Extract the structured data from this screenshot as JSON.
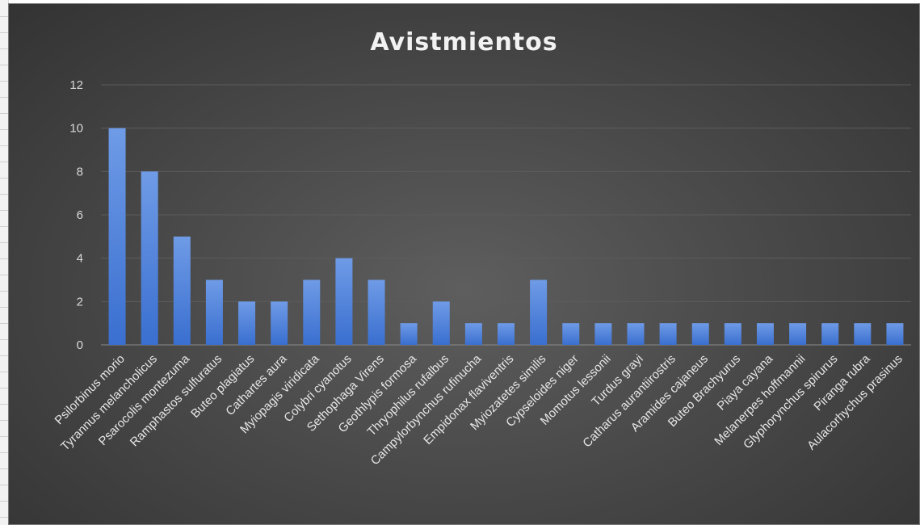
{
  "chart_data": {
    "type": "bar",
    "title": "Avistmientos",
    "xlabel": "",
    "ylabel": "",
    "ylim": [
      0,
      12
    ],
    "yticks": [
      0,
      2,
      4,
      6,
      8,
      10,
      12
    ],
    "grid": true,
    "legend": "none",
    "categories": [
      "Psilorbinus morio",
      "Tyrannus melancholicus",
      "Psarocolis montezuma",
      "Ramphastos sulfuratus",
      "Buteo plagiatus",
      "Cathartes aura",
      "Myiopagis viridicata",
      "Colybri cyanotus",
      "Sethophaga Virens",
      "Geothlypis formosa",
      "Thryophilus rufalbus",
      "Campylorbynchus rufinucha",
      "Empidonax flaviventris",
      "Myiozatetes similis",
      "Cypseloides niger",
      "Momotus lessonii",
      "Turdus grayi",
      "Catharus aurantiirostris",
      "Aramides cajaneus",
      "Buteo Brachyurus",
      "Piaya cayana",
      "Melanerpes hoffmannii",
      "Glyphorynchus spirurus",
      "Piranga rubra",
      "Aulacorhychus prasinus"
    ],
    "values": [
      10,
      8,
      5,
      3,
      2,
      2,
      3,
      4,
      3,
      1,
      2,
      1,
      1,
      3,
      1,
      1,
      1,
      1,
      1,
      1,
      1,
      1,
      1,
      1,
      1
    ],
    "colors": {
      "bar_top": "#6f9be6",
      "bar_bottom": "#3a6fd0",
      "background": "#404040",
      "gridline": "#5f5f5f"
    }
  }
}
